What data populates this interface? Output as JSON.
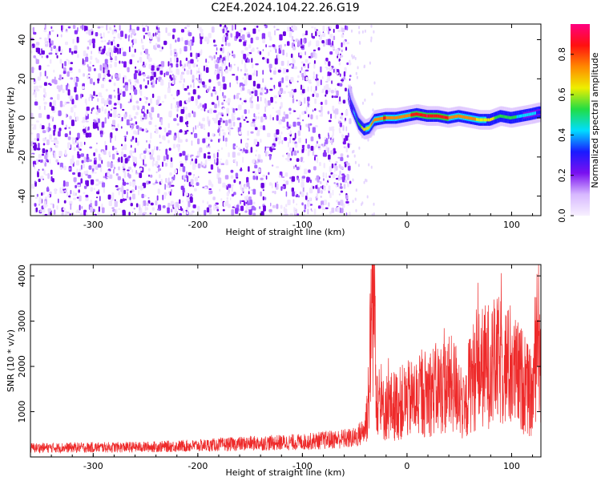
{
  "title": "C2E4.2024.104.22.26.G19",
  "colors": {
    "noise": "#7a10f0",
    "ridge": "#ff2a2a",
    "snr_line": "#ee2a2a",
    "colorbar_stops": [
      "#f7f0ff",
      "#d7b8ff",
      "#7a10f0",
      "#1a1aff",
      "#00ddff",
      "#22dd44",
      "#eeee00",
      "#ff8800",
      "#ff1010",
      "#ff0080"
    ]
  },
  "chart_data": [
    {
      "type": "heatmap",
      "xlabel": "Height of straight line (km)",
      "ylabel": "Frequency (Hz)",
      "xlim": [
        -360,
        128
      ],
      "ylim": [
        -50,
        48
      ],
      "x_ticks": [
        "-300",
        "-200",
        "-100",
        "0",
        "100"
      ],
      "x_tick_values": [
        -300,
        -200,
        -100,
        0,
        100
      ],
      "y_ticks": [
        "-40",
        "-20",
        "0",
        "20",
        "40"
      ],
      "y_tick_values": [
        -40,
        -20,
        0,
        20,
        40
      ],
      "colorbar": {
        "label": "Normalized spectral amplitude",
        "range": [
          0,
          0.95
        ],
        "ticks": [
          "0.0",
          "0.2",
          "0.4",
          "0.6",
          "0.8"
        ],
        "tick_values": [
          0.0,
          0.2,
          0.4,
          0.6,
          0.8
        ]
      },
      "noise_region_x": [
        -360,
        -55
      ],
      "signal_ridge": {
        "x": [
          -55,
          -52,
          -48,
          -45,
          -40,
          -35,
          -30,
          -20,
          -10,
          0,
          10,
          20,
          30,
          40,
          50,
          60,
          70,
          80,
          90,
          100,
          110,
          120,
          128
        ],
        "frequency": [
          12,
          6,
          1,
          -3,
          -6,
          -5,
          -1,
          0,
          0,
          1,
          2,
          1,
          1,
          0,
          1,
          0,
          -1,
          -1,
          1,
          0,
          1,
          2,
          3
        ],
        "amplitude": [
          0.2,
          0.3,
          0.45,
          0.55,
          0.6,
          0.65,
          0.75,
          0.8,
          0.7,
          0.75,
          0.85,
          0.9,
          0.85,
          0.8,
          0.7,
          0.75,
          0.65,
          0.6,
          0.55,
          0.5,
          0.45,
          0.4,
          0.35
        ]
      }
    },
    {
      "type": "line",
      "xlabel": "Height of straight line (km)",
      "ylabel": "SNR (10 * v/v)",
      "xlim": [
        -360,
        128
      ],
      "ylim": [
        0,
        4250
      ],
      "x_ticks": [
        "-300",
        "-200",
        "-100",
        "0",
        "100"
      ],
      "x_tick_values": [
        -300,
        -200,
        -100,
        0,
        100
      ],
      "y_ticks": [
        "1000",
        "2000",
        "3000",
        "4000"
      ],
      "y_tick_values": [
        1000,
        2000,
        3000,
        4000
      ],
      "series": [
        {
          "x": [
            -360,
            -300,
            -250,
            -200,
            -150,
            -100,
            -75,
            -50,
            -40,
            -36,
            -33,
            -31,
            -29,
            -25,
            -20,
            -10,
            0,
            10,
            20,
            30,
            40,
            50,
            55,
            60,
            70,
            80,
            90,
            100,
            110,
            120,
            126,
            128
          ],
          "y": [
            200,
            210,
            220,
            250,
            300,
            330,
            380,
            420,
            600,
            1600,
            4200,
            3500,
            1600,
            1000,
            1100,
            1150,
            1250,
            1300,
            1450,
            1500,
            1600,
            1500,
            900,
            1700,
            1950,
            2050,
            2100,
            1900,
            1700,
            1300,
            3500,
            1200
          ]
        }
      ]
    }
  ]
}
